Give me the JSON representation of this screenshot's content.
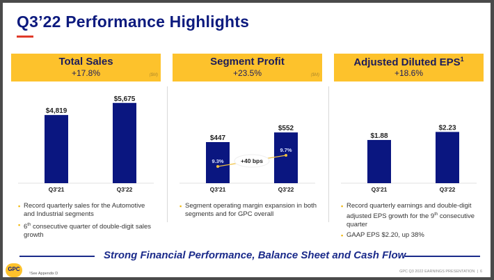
{
  "title": "Q3’22 Performance Highlights",
  "tagline": "Strong Financial Performance, Balance Sheet and Cash Flow",
  "footnote": "¹See Appendix D",
  "footer": {
    "text": "GPC Q3 2022 EARNINGS PRESENTATION",
    "sep": "|",
    "page": "6"
  },
  "logo": {
    "text": "GPC"
  },
  "colors": {
    "bar": "#0a1680",
    "header": "#fdc22c",
    "title": "#0c1a7e",
    "accent": "#e03a2a",
    "trend": "#f0c040"
  },
  "panels": [
    {
      "title": "Total Sales",
      "sup": "",
      "change": "+17.8%",
      "unit": "($M)",
      "bullets": [
        {
          "pre": "Record quarterly sales for the Automotive and Industrial segments",
          "sup": "",
          "post": ""
        },
        {
          "pre": "6",
          "sup": "th",
          "post": " consecutive quarter of double-digit sales growth"
        }
      ]
    },
    {
      "title": "Segment Profit",
      "sup": "",
      "change": "+23.5%",
      "unit": "($M)",
      "bullets": [
        {
          "pre": "Segment operating margin expansion in both segments and for GPC overall",
          "sup": "",
          "post": ""
        }
      ]
    },
    {
      "title": "Adjusted Diluted EPS",
      "sup": "1",
      "change": "+18.6%",
      "unit": "",
      "bullets": [
        {
          "pre": "Record quarterly earnings and double-digit adjusted EPS growth for the 9",
          "sup": "th",
          "post": " consecutive quarter"
        },
        {
          "pre": "GAAP EPS $2.20, up 38%",
          "sup": "",
          "post": ""
        }
      ]
    }
  ],
  "chart_data": [
    {
      "type": "bar",
      "title": "Total Sales",
      "categories": [
        "Q3'21",
        "Q3'22"
      ],
      "values": [
        4819,
        5675
      ],
      "labels": [
        "$4,819",
        "$5,675"
      ],
      "ylabel": "($M)",
      "ylim": [
        0,
        6500
      ]
    },
    {
      "type": "bar",
      "title": "Segment Profit",
      "categories": [
        "Q3'21",
        "Q3'22"
      ],
      "values": [
        447,
        552
      ],
      "labels": [
        "$447",
        "$552"
      ],
      "ylabel": "($M)",
      "ylim": [
        0,
        1000
      ],
      "overlay": {
        "type": "line",
        "name": "Segment margin",
        "values": [
          9.3,
          9.7
        ],
        "labels": [
          "9.3%",
          "9.7%"
        ],
        "annotation": "+40 bps"
      }
    },
    {
      "type": "bar",
      "title": "Adjusted Diluted EPS",
      "categories": [
        "Q3'21",
        "Q3'22"
      ],
      "values": [
        1.88,
        2.23
      ],
      "labels": [
        "$1.88",
        "$2.23"
      ],
      "ylabel": "",
      "ylim": [
        0,
        4.0
      ]
    }
  ]
}
